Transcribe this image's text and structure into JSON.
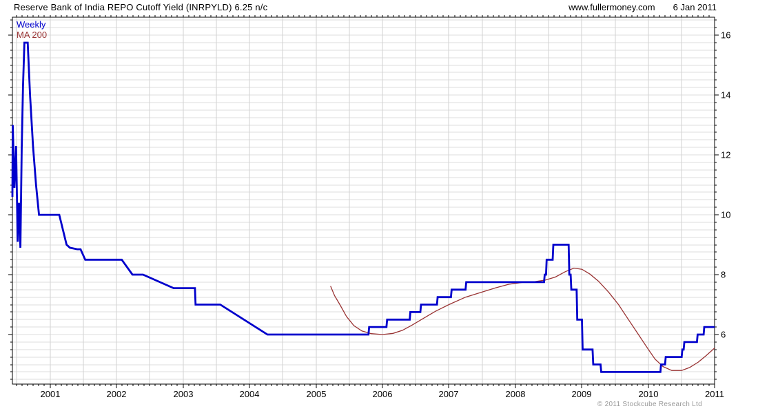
{
  "header": {
    "website": "www.fullermoney.com",
    "date": "6 Jan 2011"
  },
  "footer": {
    "copyright": "© 2011 Stockcube Research Ltd"
  },
  "colors": {
    "background": "#ffffff",
    "frame": "#000000",
    "grid_horizontal": "#dcdcdc",
    "grid_vertical": "#d2d2d2",
    "tick": "#000000",
    "text": "#000000",
    "copyright_text": "#9a9a9a"
  },
  "chart_data": {
    "type": "line",
    "title": "Reserve Bank of India REPO Cutoff Yield (INRPYLD) 6.25 n/c",
    "subtitle": "",
    "grid": true,
    "legend_position": "top-left",
    "x_axis": {
      "label": "",
      "unit": "year",
      "min": 2000.435,
      "max": 2010.995,
      "year_tick_labels": [
        2001,
        2002,
        2003,
        2004,
        2005,
        2006,
        2007,
        2008,
        2009,
        2010,
        2011
      ],
      "minor_tick_step": 0.0833333,
      "minor_tick_start": 2000.5,
      "grid_start": 2000.5,
      "grid_step": 0.5,
      "grid_end": 2010.5
    },
    "y_axis": {
      "label": "",
      "unit": "percent yield",
      "min": 4.345,
      "max": 16.6,
      "tick_labels": [
        6,
        8,
        10,
        12,
        14,
        16
      ],
      "minor_tick_step": 0.25,
      "minor_tick_start": 4.5,
      "grid_start": 4.5,
      "grid_step": 0.25,
      "grid_end": 16.5,
      "side": "right"
    },
    "series": [
      {
        "name": "Weekly",
        "color": "#0000cc",
        "width": 2.8,
        "points": [
          [
            2000.435,
            10.6
          ],
          [
            2000.44,
            13.0
          ],
          [
            2000.465,
            10.9
          ],
          [
            2000.49,
            12.3
          ],
          [
            2000.515,
            9.1
          ],
          [
            2000.535,
            10.4
          ],
          [
            2000.555,
            8.9
          ],
          [
            2000.575,
            12.2
          ],
          [
            2000.595,
            14.3
          ],
          [
            2000.615,
            15.75
          ],
          [
            2000.665,
            15.75
          ],
          [
            2000.7,
            14.0
          ],
          [
            2000.745,
            12.3
          ],
          [
            2000.79,
            11.0
          ],
          [
            2000.835,
            10.0
          ],
          [
            2001.14,
            10.0
          ],
          [
            2001.25,
            9.0
          ],
          [
            2001.3,
            8.9
          ],
          [
            2001.41,
            8.85
          ],
          [
            2001.46,
            8.85
          ],
          [
            2001.53,
            8.5
          ],
          [
            2002.08,
            8.5
          ],
          [
            2002.24,
            8.0
          ],
          [
            2002.4,
            8.0
          ],
          [
            2002.86,
            7.55
          ],
          [
            2003.18,
            7.55
          ],
          [
            2003.19,
            7.0
          ],
          [
            2003.56,
            7.0
          ],
          [
            2004.27,
            6.0
          ],
          [
            2005.79,
            6.0
          ],
          [
            2005.8,
            6.25
          ],
          [
            2006.06,
            6.25
          ],
          [
            2006.07,
            6.5
          ],
          [
            2006.41,
            6.5
          ],
          [
            2006.42,
            6.75
          ],
          [
            2006.57,
            6.75
          ],
          [
            2006.58,
            7.0
          ],
          [
            2006.82,
            7.0
          ],
          [
            2006.83,
            7.25
          ],
          [
            2007.03,
            7.25
          ],
          [
            2007.04,
            7.5
          ],
          [
            2007.25,
            7.5
          ],
          [
            2007.26,
            7.75
          ],
          [
            2008.43,
            7.75
          ],
          [
            2008.44,
            8.0
          ],
          [
            2008.46,
            8.0
          ],
          [
            2008.47,
            8.5
          ],
          [
            2008.56,
            8.5
          ],
          [
            2008.57,
            9.0
          ],
          [
            2008.8,
            9.0
          ],
          [
            2008.81,
            8.0
          ],
          [
            2008.83,
            8.0
          ],
          [
            2008.84,
            7.5
          ],
          [
            2008.92,
            7.5
          ],
          [
            2008.93,
            6.5
          ],
          [
            2009.0,
            6.5
          ],
          [
            2009.01,
            5.5
          ],
          [
            2009.16,
            5.5
          ],
          [
            2009.17,
            5.0
          ],
          [
            2009.28,
            5.0
          ],
          [
            2009.29,
            4.75
          ],
          [
            2010.18,
            4.75
          ],
          [
            2010.19,
            5.0
          ],
          [
            2010.25,
            5.0
          ],
          [
            2010.26,
            5.25
          ],
          [
            2010.5,
            5.25
          ],
          [
            2010.51,
            5.5
          ],
          [
            2010.53,
            5.5
          ],
          [
            2010.54,
            5.75
          ],
          [
            2010.73,
            5.75
          ],
          [
            2010.74,
            6.0
          ],
          [
            2010.83,
            6.0
          ],
          [
            2010.84,
            6.25
          ],
          [
            2010.995,
            6.25
          ]
        ]
      },
      {
        "name": "MA 200",
        "color": "#993333",
        "width": 1.3,
        "points": [
          [
            2005.22,
            7.62
          ],
          [
            2005.28,
            7.3
          ],
          [
            2005.36,
            7.0
          ],
          [
            2005.46,
            6.6
          ],
          [
            2005.57,
            6.3
          ],
          [
            2005.69,
            6.12
          ],
          [
            2005.83,
            6.03
          ],
          [
            2006.0,
            6.0
          ],
          [
            2006.16,
            6.04
          ],
          [
            2006.3,
            6.14
          ],
          [
            2006.45,
            6.32
          ],
          [
            2006.6,
            6.52
          ],
          [
            2006.8,
            6.78
          ],
          [
            2007.0,
            7.0
          ],
          [
            2007.25,
            7.25
          ],
          [
            2007.5,
            7.42
          ],
          [
            2007.7,
            7.56
          ],
          [
            2007.9,
            7.68
          ],
          [
            2008.1,
            7.74
          ],
          [
            2008.3,
            7.77
          ],
          [
            2008.45,
            7.82
          ],
          [
            2008.6,
            7.92
          ],
          [
            2008.75,
            8.1
          ],
          [
            2008.88,
            8.22
          ],
          [
            2009.0,
            8.18
          ],
          [
            2009.12,
            8.02
          ],
          [
            2009.25,
            7.78
          ],
          [
            2009.4,
            7.42
          ],
          [
            2009.55,
            7.0
          ],
          [
            2009.7,
            6.5
          ],
          [
            2009.85,
            6.0
          ],
          [
            2010.0,
            5.5
          ],
          [
            2010.1,
            5.18
          ],
          [
            2010.22,
            4.93
          ],
          [
            2010.35,
            4.8
          ],
          [
            2010.5,
            4.8
          ],
          [
            2010.62,
            4.9
          ],
          [
            2010.75,
            5.08
          ],
          [
            2010.87,
            5.3
          ],
          [
            2010.995,
            5.55
          ]
        ]
      }
    ]
  }
}
